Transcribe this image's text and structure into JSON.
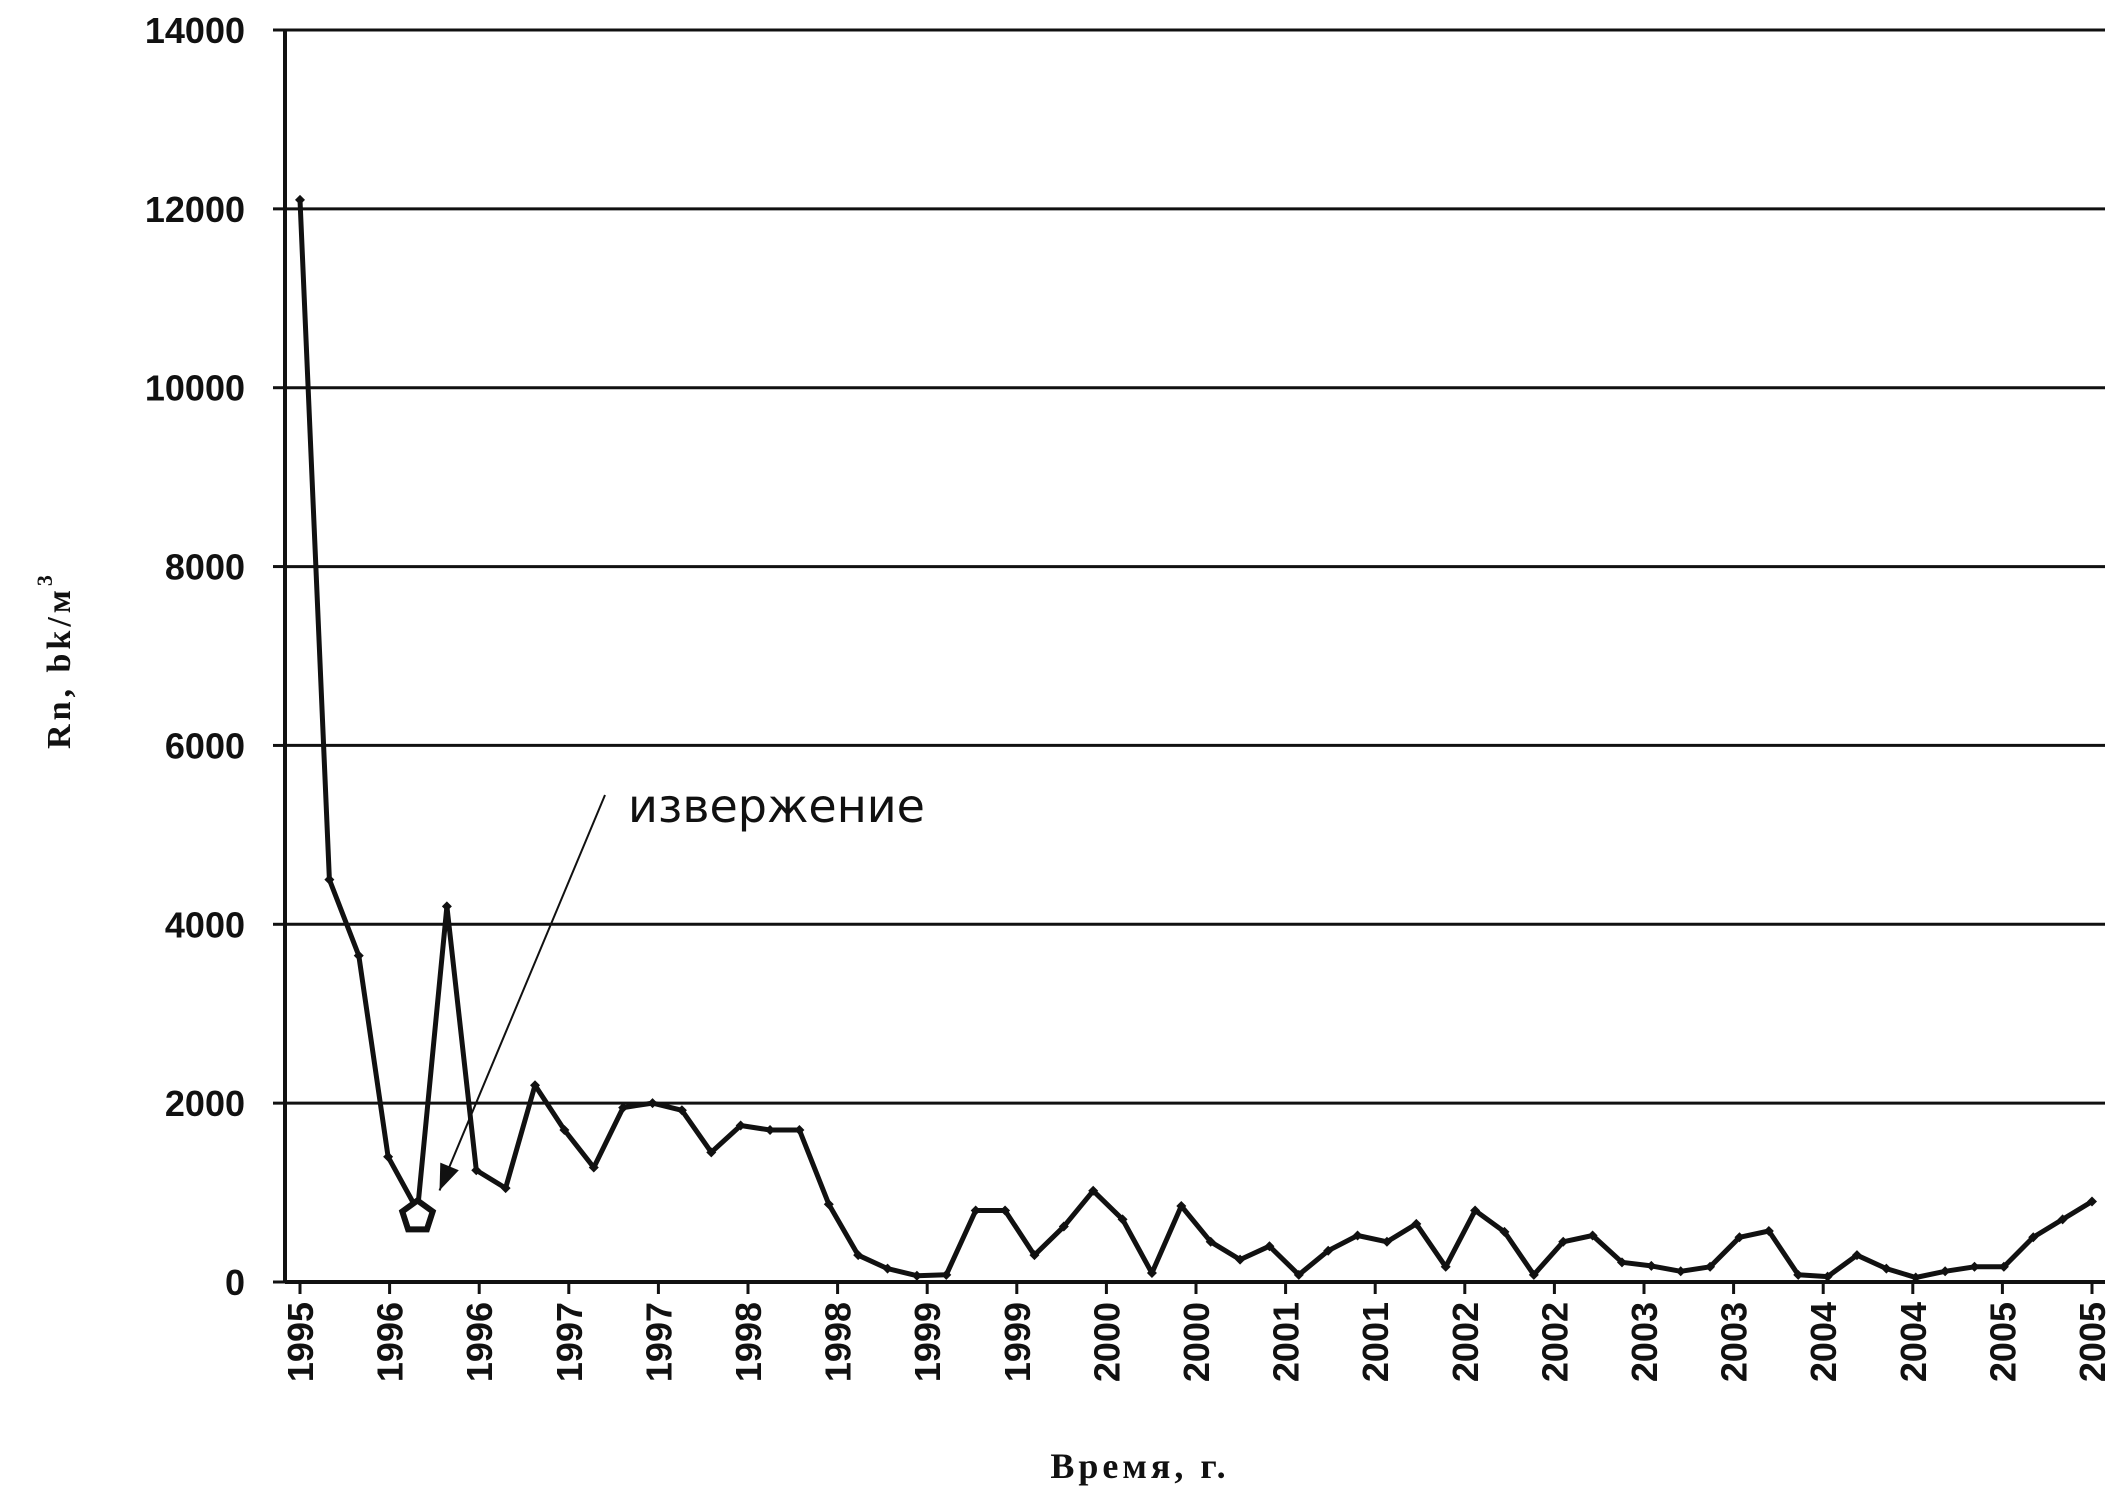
{
  "chart_data": {
    "type": "line",
    "title": "",
    "xlabel": "Время,  г.",
    "ylabel": "Rn, bk/м",
    "ylabel_sup": "3",
    "ylim": [
      0,
      14000
    ],
    "yticks": [
      0,
      2000,
      4000,
      6000,
      8000,
      10000,
      12000,
      14000
    ],
    "xticks": [
      "1995",
      "1996",
      "1996",
      "1997",
      "1997",
      "1998",
      "1998",
      "1999",
      "1999",
      "2000",
      "2000",
      "2001",
      "2001",
      "2002",
      "2002",
      "2003",
      "2003",
      "2004",
      "2004",
      "2005",
      "2005"
    ],
    "grid": true,
    "legend": "none",
    "line_color": "#111111",
    "series": [
      {
        "values": [
          12100,
          4500,
          3650,
          1400,
          800,
          4200,
          1250,
          1050,
          2200,
          1700,
          1280,
          1950,
          2000,
          1920,
          1450,
          1750,
          1700,
          1700,
          870,
          300,
          150,
          70,
          80,
          800,
          800,
          300,
          620,
          1020,
          700,
          100,
          850,
          450,
          250,
          400,
          80,
          350,
          520,
          450,
          650,
          170,
          800,
          560,
          80,
          450,
          520,
          220,
          180,
          120,
          170,
          500,
          570,
          80,
          60,
          300,
          150,
          50,
          120,
          170,
          170,
          500,
          700,
          900
        ]
      }
    ],
    "highlight_index": 4,
    "annotations": [
      {
        "text": "извержение",
        "target_index": 4
      }
    ]
  }
}
